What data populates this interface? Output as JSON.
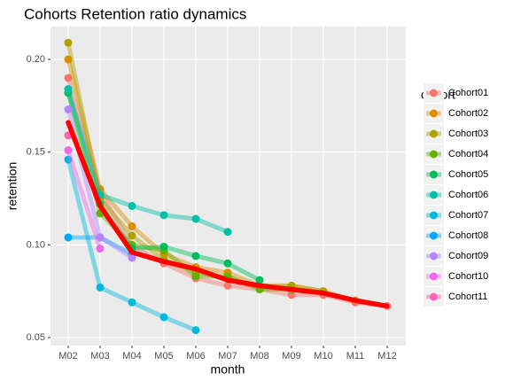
{
  "chart_data": {
    "type": "line",
    "title": "Cohorts Retention ratio dynamics",
    "x_label": "month",
    "y_label": "retention",
    "legend_title": "cohort",
    "legend": "right",
    "grid": true,
    "categories": [
      "M02",
      "M03",
      "M04",
      "M05",
      "M06",
      "M07",
      "M08",
      "M09",
      "M10",
      "M11",
      "M12"
    ],
    "ylim": [
      0.0457,
      0.2177
    ],
    "yticks": [
      0.05,
      {
        "value": 0.1,
        "label": "0.10"
      },
      0.15,
      {
        "value": 0.2,
        "label": "0.20"
      }
    ],
    "series": [
      {
        "name": "Cohort01",
        "color": "#F8766D",
        "values": [
          0.19,
          0.128,
          0.1,
          0.09,
          0.082,
          0.078,
          0.076,
          0.073,
          0.073,
          0.069,
          0.067
        ]
      },
      {
        "name": "Cohort02",
        "color": "#DB8E00",
        "values": [
          0.2,
          0.13,
          0.11,
          0.095,
          0.088,
          0.085,
          0.078,
          0.078,
          0.075,
          0.07,
          null
        ]
      },
      {
        "name": "Cohort03",
        "color": "#AEA200",
        "values": [
          0.209,
          0.125,
          0.105,
          0.092,
          0.085,
          0.082,
          0.077,
          0.078,
          0.075,
          null,
          null
        ]
      },
      {
        "name": "Cohort04",
        "color": "#64B200",
        "values": [
          0.182,
          0.117,
          0.1,
          0.097,
          0.083,
          0.083,
          0.076,
          0.076,
          null,
          null,
          null
        ]
      },
      {
        "name": "Cohort05",
        "color": "#00BD5C",
        "values": [
          0.182,
          0.122,
          0.098,
          0.099,
          0.094,
          0.09,
          0.081,
          null,
          null,
          null,
          null
        ]
      },
      {
        "name": "Cohort06",
        "color": "#00C1A7",
        "values": [
          0.184,
          0.127,
          0.121,
          0.116,
          0.114,
          0.107,
          null,
          null,
          null,
          null,
          null
        ]
      },
      {
        "name": "Cohort07",
        "color": "#00BADE",
        "values": [
          0.146,
          0.077,
          0.069,
          0.061,
          0.054,
          null,
          null,
          null,
          null,
          null,
          null
        ]
      },
      {
        "name": "Cohort08",
        "color": "#00A6FF",
        "values": [
          0.104,
          0.104,
          0.095,
          null,
          null,
          null,
          null,
          null,
          null,
          null,
          null
        ]
      },
      {
        "name": "Cohort09",
        "color": "#B385FF",
        "values": [
          0.173,
          0.104,
          0.093,
          null,
          null,
          null,
          null,
          null,
          null,
          null,
          null
        ]
      },
      {
        "name": "Cohort10",
        "color": "#EF67EB",
        "values": [
          0.151,
          0.098,
          null,
          null,
          null,
          null,
          null,
          null,
          null,
          null,
          null
        ]
      },
      {
        "name": "Cohort11",
        "color": "#FF63B6",
        "values": [
          0.159,
          null,
          null,
          null,
          null,
          null,
          null,
          null,
          null,
          null,
          null
        ]
      },
      {
        "color": "#FF0000",
        "values": [
          0.166,
          0.121,
          0.096,
          0.091,
          0.087,
          0.081,
          0.078,
          0.076,
          0.074,
          0.07,
          0.067
        ]
      }
    ]
  }
}
